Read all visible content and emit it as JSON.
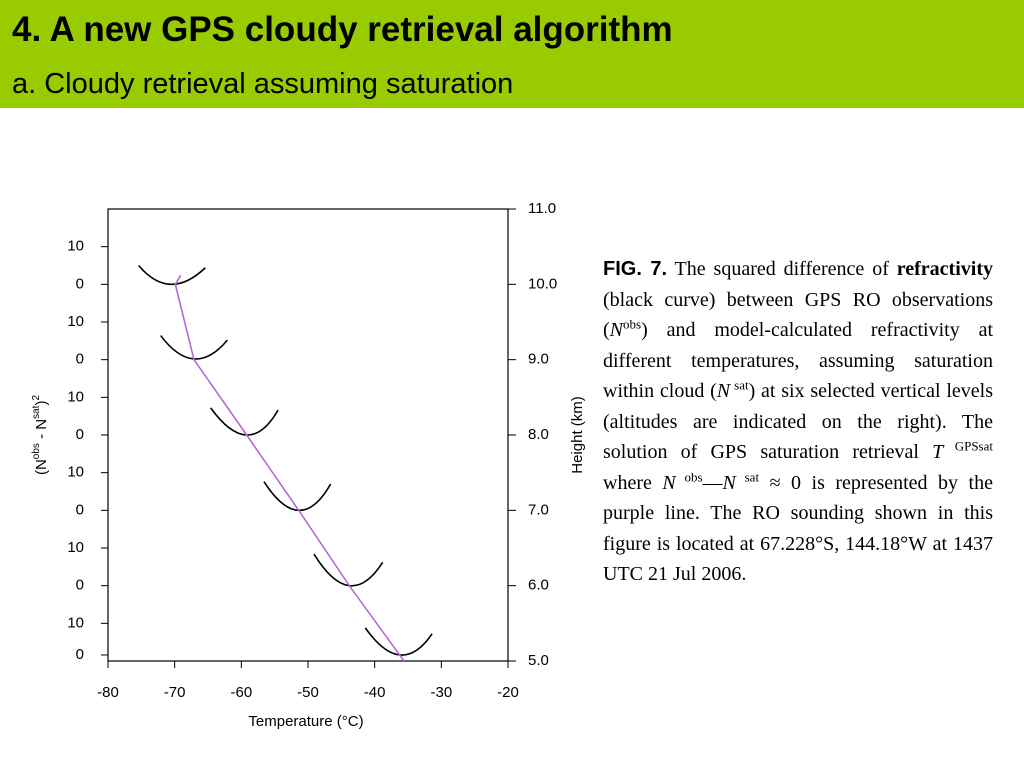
{
  "header": {
    "title": "4. A new GPS cloudy retrieval algorithm",
    "subtitle": "a. Cloudy retrieval assuming saturation"
  },
  "chart_data": {
    "type": "line",
    "x_label": "Temperature (°C)",
    "y_label_parts": [
      "(N",
      "obs",
      " - N",
      "sat",
      ")",
      "2"
    ],
    "y2_label": "Height (km)",
    "xlim": [
      -80,
      -20
    ],
    "xticks": [
      -80,
      -70,
      -60,
      -50,
      -40,
      -30,
      -20
    ],
    "ylim": [
      5,
      11
    ],
    "yticks": [
      {
        "value": 5,
        "label": "5.0"
      },
      {
        "value": 6,
        "label": "6.0"
      },
      {
        "value": 7,
        "label": "7.0"
      },
      {
        "value": 8,
        "label": "8.0"
      },
      {
        "value": 9,
        "label": "9.0"
      },
      {
        "value": 10,
        "label": "10.0"
      },
      {
        "value": 11,
        "label": "11.0"
      }
    ],
    "left_ticks": [
      {
        "value": 5.08,
        "label": "0"
      },
      {
        "value": 5.5,
        "label": "10"
      },
      {
        "value": 6,
        "label": "0"
      },
      {
        "value": 6.5,
        "label": "10"
      },
      {
        "value": 7,
        "label": "0"
      },
      {
        "value": 7.5,
        "label": "10"
      },
      {
        "value": 8,
        "label": "0"
      },
      {
        "value": 8.5,
        "label": "10"
      },
      {
        "value": 9,
        "label": "0"
      },
      {
        "value": 9.5,
        "label": "10"
      },
      {
        "value": 10,
        "label": "0"
      },
      {
        "value": 10.5,
        "label": "10"
      }
    ],
    "series": [
      {
        "color": "#000000",
        "x": [
          -75.4,
          -70.6,
          -65.4
        ],
        "values": [
          10.25,
          10.0,
          10.22
        ]
      },
      {
        "color": "#000000",
        "x": [
          -72.1,
          -67.1,
          -62.1
        ],
        "values": [
          9.32,
          9.01,
          9.26
        ]
      },
      {
        "color": "#000000",
        "x": [
          -64.6,
          -59.2,
          -54.5
        ],
        "values": [
          8.36,
          8.0,
          8.33
        ]
      },
      {
        "color": "#000000",
        "x": [
          -56.6,
          -51.4,
          -46.6
        ],
        "values": [
          7.38,
          7.0,
          7.35
        ]
      },
      {
        "color": "#000000",
        "x": [
          -49.1,
          -43.8,
          -38.8
        ],
        "values": [
          6.42,
          6.0,
          6.31
        ]
      },
      {
        "color": "#000000",
        "x": [
          -41.4,
          -36.2,
          -31.4
        ],
        "values": [
          5.44,
          5.08,
          5.36
        ]
      },
      {
        "color": "#b36ad6",
        "x": [
          -69.1,
          -69.9,
          -67.1,
          -59.2,
          -51.4,
          -43.8,
          -35.6
        ],
        "values": [
          10.12,
          10.0,
          9.0,
          8.0,
          7.0,
          6.0,
          5.0
        ]
      }
    ]
  },
  "caption": [
    "FIG. 7.",
    " The squared difference of ",
    "refractivity",
    " (black curve) between GPS RO observations (",
    "N",
    "obs",
    ") and model-calculated refractivity at different temperatures, assuming saturation within cloud (",
    "N",
    " sat",
    ") at six selected vertical levels (altitudes are indicated on the right). The solution of GPS saturation retrieval ",
    "T",
    " GPSsat",
    " where ",
    "N",
    " obs",
    "—",
    "N",
    " sat",
    " ≈ 0 is represented by the purple line. The RO sounding shown in this figure is located at 67.228°S, 144.18°W at 1437 UTC 21 Jul 2006."
  ]
}
